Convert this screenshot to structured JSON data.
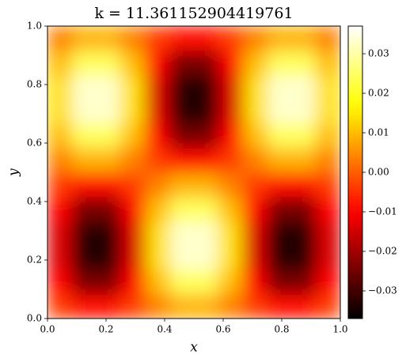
{
  "chart_data": {
    "type": "heatmap",
    "title": "k = 11.361152904419761",
    "x_label": "x",
    "y_label": "y",
    "xlim": [
      0,
      1
    ],
    "ylim": [
      0,
      1
    ],
    "xticks": [
      {
        "value": 0,
        "label": "0.0"
      },
      {
        "value": 0.2,
        "label": "0.2"
      },
      {
        "value": 0.4,
        "label": "0.4"
      },
      {
        "value": 0.6,
        "label": "0.6"
      },
      {
        "value": 0.8,
        "label": "0.8"
      },
      {
        "value": 1,
        "label": "1.0"
      }
    ],
    "yticks": [
      {
        "value": 0,
        "label": "0.0"
      },
      {
        "value": 0.2,
        "label": "0.2"
      },
      {
        "value": 0.4,
        "label": "0.4"
      },
      {
        "value": 0.6,
        "label": "0.6"
      },
      {
        "value": 0.8,
        "label": "0.8"
      },
      {
        "value": 1,
        "label": "1.0"
      }
    ],
    "colormap": "hot",
    "zlim": [
      -0.037,
      0.037
    ],
    "zticks": [
      {
        "value": -0.03,
        "label": "−0.03"
      },
      {
        "value": -0.02,
        "label": "−0.02"
      },
      {
        "value": -0.01,
        "label": "−0.01"
      },
      {
        "value": 0,
        "label": "0.00"
      },
      {
        "value": 0.01,
        "label": "0.01"
      },
      {
        "value": 0.02,
        "label": "0.02"
      },
      {
        "value": 0.03,
        "label": "0.03"
      }
    ],
    "values": [
      [
        -0.0037,
        -0.0089,
        -0.0089,
        -0.0037,
        0.0037,
        0.0089,
        0.0089,
        0.0037,
        -0.0037,
        -0.0089,
        -0.0089,
        -0.0037
      ],
      [
        -0.01,
        -0.0242,
        -0.0242,
        -0.01,
        0.01,
        0.0242,
        0.0242,
        0.01,
        -0.01,
        -0.0242,
        -0.0242,
        -0.01
      ],
      [
        -0.0137,
        -0.033,
        -0.033,
        -0.0137,
        0.0137,
        0.033,
        0.033,
        0.0137,
        -0.0137,
        -0.033,
        -0.033,
        -0.0137
      ],
      [
        -0.0137,
        -0.033,
        -0.033,
        -0.0137,
        0.0137,
        0.033,
        0.033,
        0.0137,
        -0.0137,
        -0.033,
        -0.033,
        -0.0137
      ],
      [
        -0.01,
        -0.0242,
        -0.0242,
        -0.01,
        0.01,
        0.0242,
        0.0242,
        0.01,
        -0.01,
        -0.0242,
        -0.0242,
        -0.01
      ],
      [
        -0.0037,
        -0.0089,
        -0.0089,
        -0.0037,
        0.0037,
        0.0089,
        0.0089,
        0.0037,
        -0.0037,
        -0.0089,
        -0.0089,
        -0.0037
      ],
      [
        0.0037,
        0.0089,
        0.0089,
        0.0037,
        -0.0037,
        -0.0089,
        -0.0089,
        -0.0037,
        0.0037,
        0.0089,
        0.0089,
        0.0037
      ],
      [
        0.01,
        0.0242,
        0.0242,
        0.01,
        -0.01,
        -0.0242,
        -0.0242,
        -0.01,
        0.01,
        0.0242,
        0.0242,
        0.01
      ],
      [
        0.0137,
        0.033,
        0.033,
        0.0137,
        -0.0137,
        -0.033,
        -0.033,
        -0.0137,
        0.0137,
        0.033,
        0.033,
        0.0137
      ],
      [
        0.0137,
        0.033,
        0.033,
        0.0137,
        -0.0137,
        -0.033,
        -0.033,
        -0.0137,
        0.0137,
        0.033,
        0.033,
        0.0137
      ],
      [
        0.01,
        0.0242,
        0.0242,
        0.01,
        -0.01,
        -0.0242,
        -0.0242,
        -0.01,
        0.01,
        0.0242,
        0.0242,
        0.01
      ],
      [
        0.0037,
        0.0089,
        0.0089,
        0.0037,
        -0.0037,
        -0.0089,
        -0.0089,
        -0.0037,
        0.0037,
        0.0089,
        0.0089,
        0.0037
      ]
    ]
  }
}
